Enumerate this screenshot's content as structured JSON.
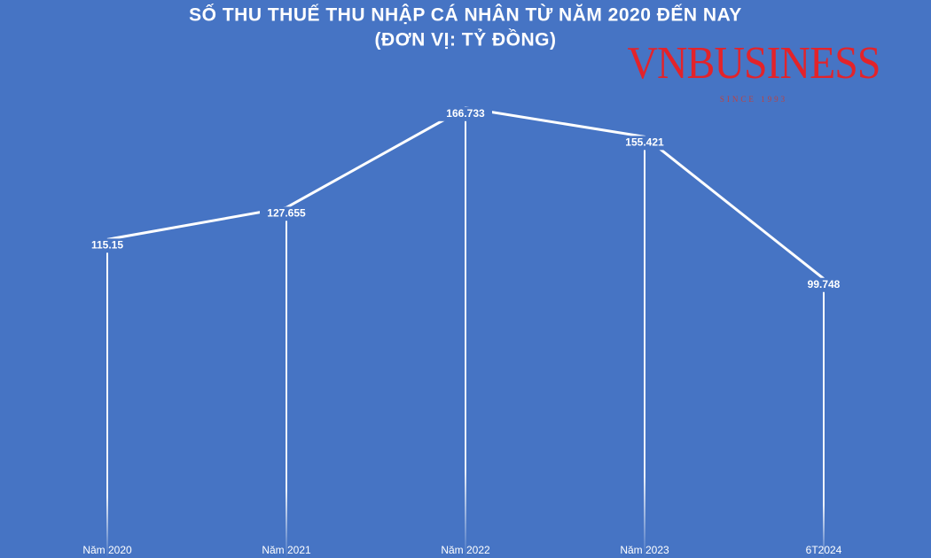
{
  "chart_data": {
    "type": "line",
    "title": "SỐ THU THUẾ THU NHẬP CÁ NHÂN TỪ NĂM 2020 ĐẾN NAY",
    "subtitle": "(ĐƠN VỊ: TỶ ĐỒNG)",
    "logo": "VNBUSINESS",
    "logo_tagline": "SINCE 1993",
    "categories": [
      "Năm 2020",
      "Năm 2021",
      "Năm 2022",
      "Năm 2023",
      "6T2024"
    ],
    "values": [
      115.15,
      127.655,
      166.733,
      155.421,
      99.748
    ],
    "color": "#ffffff"
  }
}
